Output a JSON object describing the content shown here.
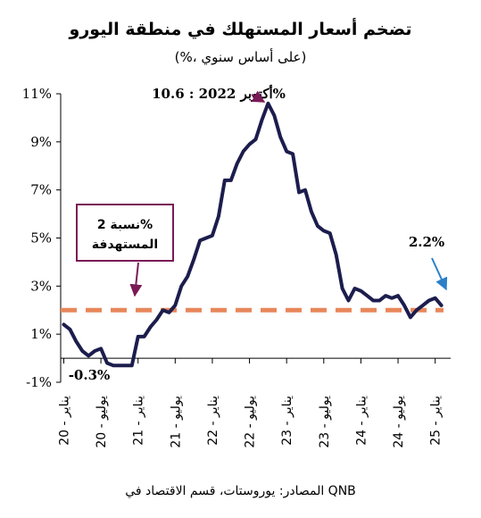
{
  "chart_data": {
    "type": "line",
    "title": "تضخم أسعار المستهلك في منطقة اليورو",
    "subtitle": "(%، على أساس سنوي)",
    "source": "المصادر: يوروستات، قسم الاقتصاد في QNB",
    "ylim": [
      -1,
      11
    ],
    "y_ticks": [
      "11%",
      "9%",
      "7%",
      "5%",
      "3%",
      "1%",
      "-1%"
    ],
    "y_tick_values": [
      11,
      9,
      7,
      5,
      3,
      1,
      -1
    ],
    "x_ticks": [
      "يناير - 20",
      "يوليو - 20",
      "يناير - 21",
      "يوليو - 21",
      "يناير - 22",
      "يوليو - 22",
      "يناير - 23",
      "يوليو - 23",
      "يناير - 24",
      "يوليو - 24",
      "يناير - 25"
    ],
    "x_tick_months": [
      0,
      6,
      12,
      18,
      24,
      30,
      36,
      42,
      48,
      54,
      60
    ],
    "grid": false,
    "target_line": {
      "value": 2,
      "label": "نسبة 2% المستهدفة",
      "color": "#e8875a"
    },
    "line_color": "#1c1d4d",
    "annotations": {
      "peak": "أكتوبر 2022 : 10.6%",
      "min": "-0.3%",
      "latest": "2.2%",
      "peak_color": "#7a1a57",
      "latest_color": "#2a7fc9"
    },
    "series": [
      {
        "x": [
          0,
          1,
          2,
          3,
          4,
          5,
          6,
          7,
          8,
          9,
          10,
          11,
          12,
          13,
          14,
          15,
          16,
          17,
          18,
          19,
          20,
          21,
          22,
          23,
          24,
          25,
          26,
          27,
          28,
          29,
          30,
          31,
          32,
          33,
          34,
          35,
          36,
          37,
          38,
          39,
          40,
          41,
          42,
          43,
          44,
          45,
          46,
          47,
          48,
          49,
          50,
          51,
          52,
          53,
          54,
          55,
          56,
          57,
          58,
          59,
          60,
          61
        ],
        "values": [
          1.4,
          1.2,
          0.7,
          0.3,
          0.1,
          0.3,
          0.4,
          -0.2,
          -0.3,
          -0.3,
          -0.3,
          -0.3,
          0.9,
          0.9,
          1.3,
          1.6,
          2.0,
          1.9,
          2.2,
          3.0,
          3.4,
          4.1,
          4.9,
          5.0,
          5.1,
          5.9,
          7.4,
          7.4,
          8.1,
          8.6,
          8.9,
          9.1,
          9.9,
          10.6,
          10.1,
          9.2,
          8.6,
          8.5,
          6.9,
          7.0,
          6.1,
          5.5,
          5.3,
          5.2,
          4.3,
          2.9,
          2.4,
          2.9,
          2.8,
          2.6,
          2.4,
          2.4,
          2.6,
          2.5,
          2.6,
          2.2,
          1.7,
          2.0,
          2.2,
          2.4,
          2.5,
          2.2
        ]
      }
    ]
  }
}
